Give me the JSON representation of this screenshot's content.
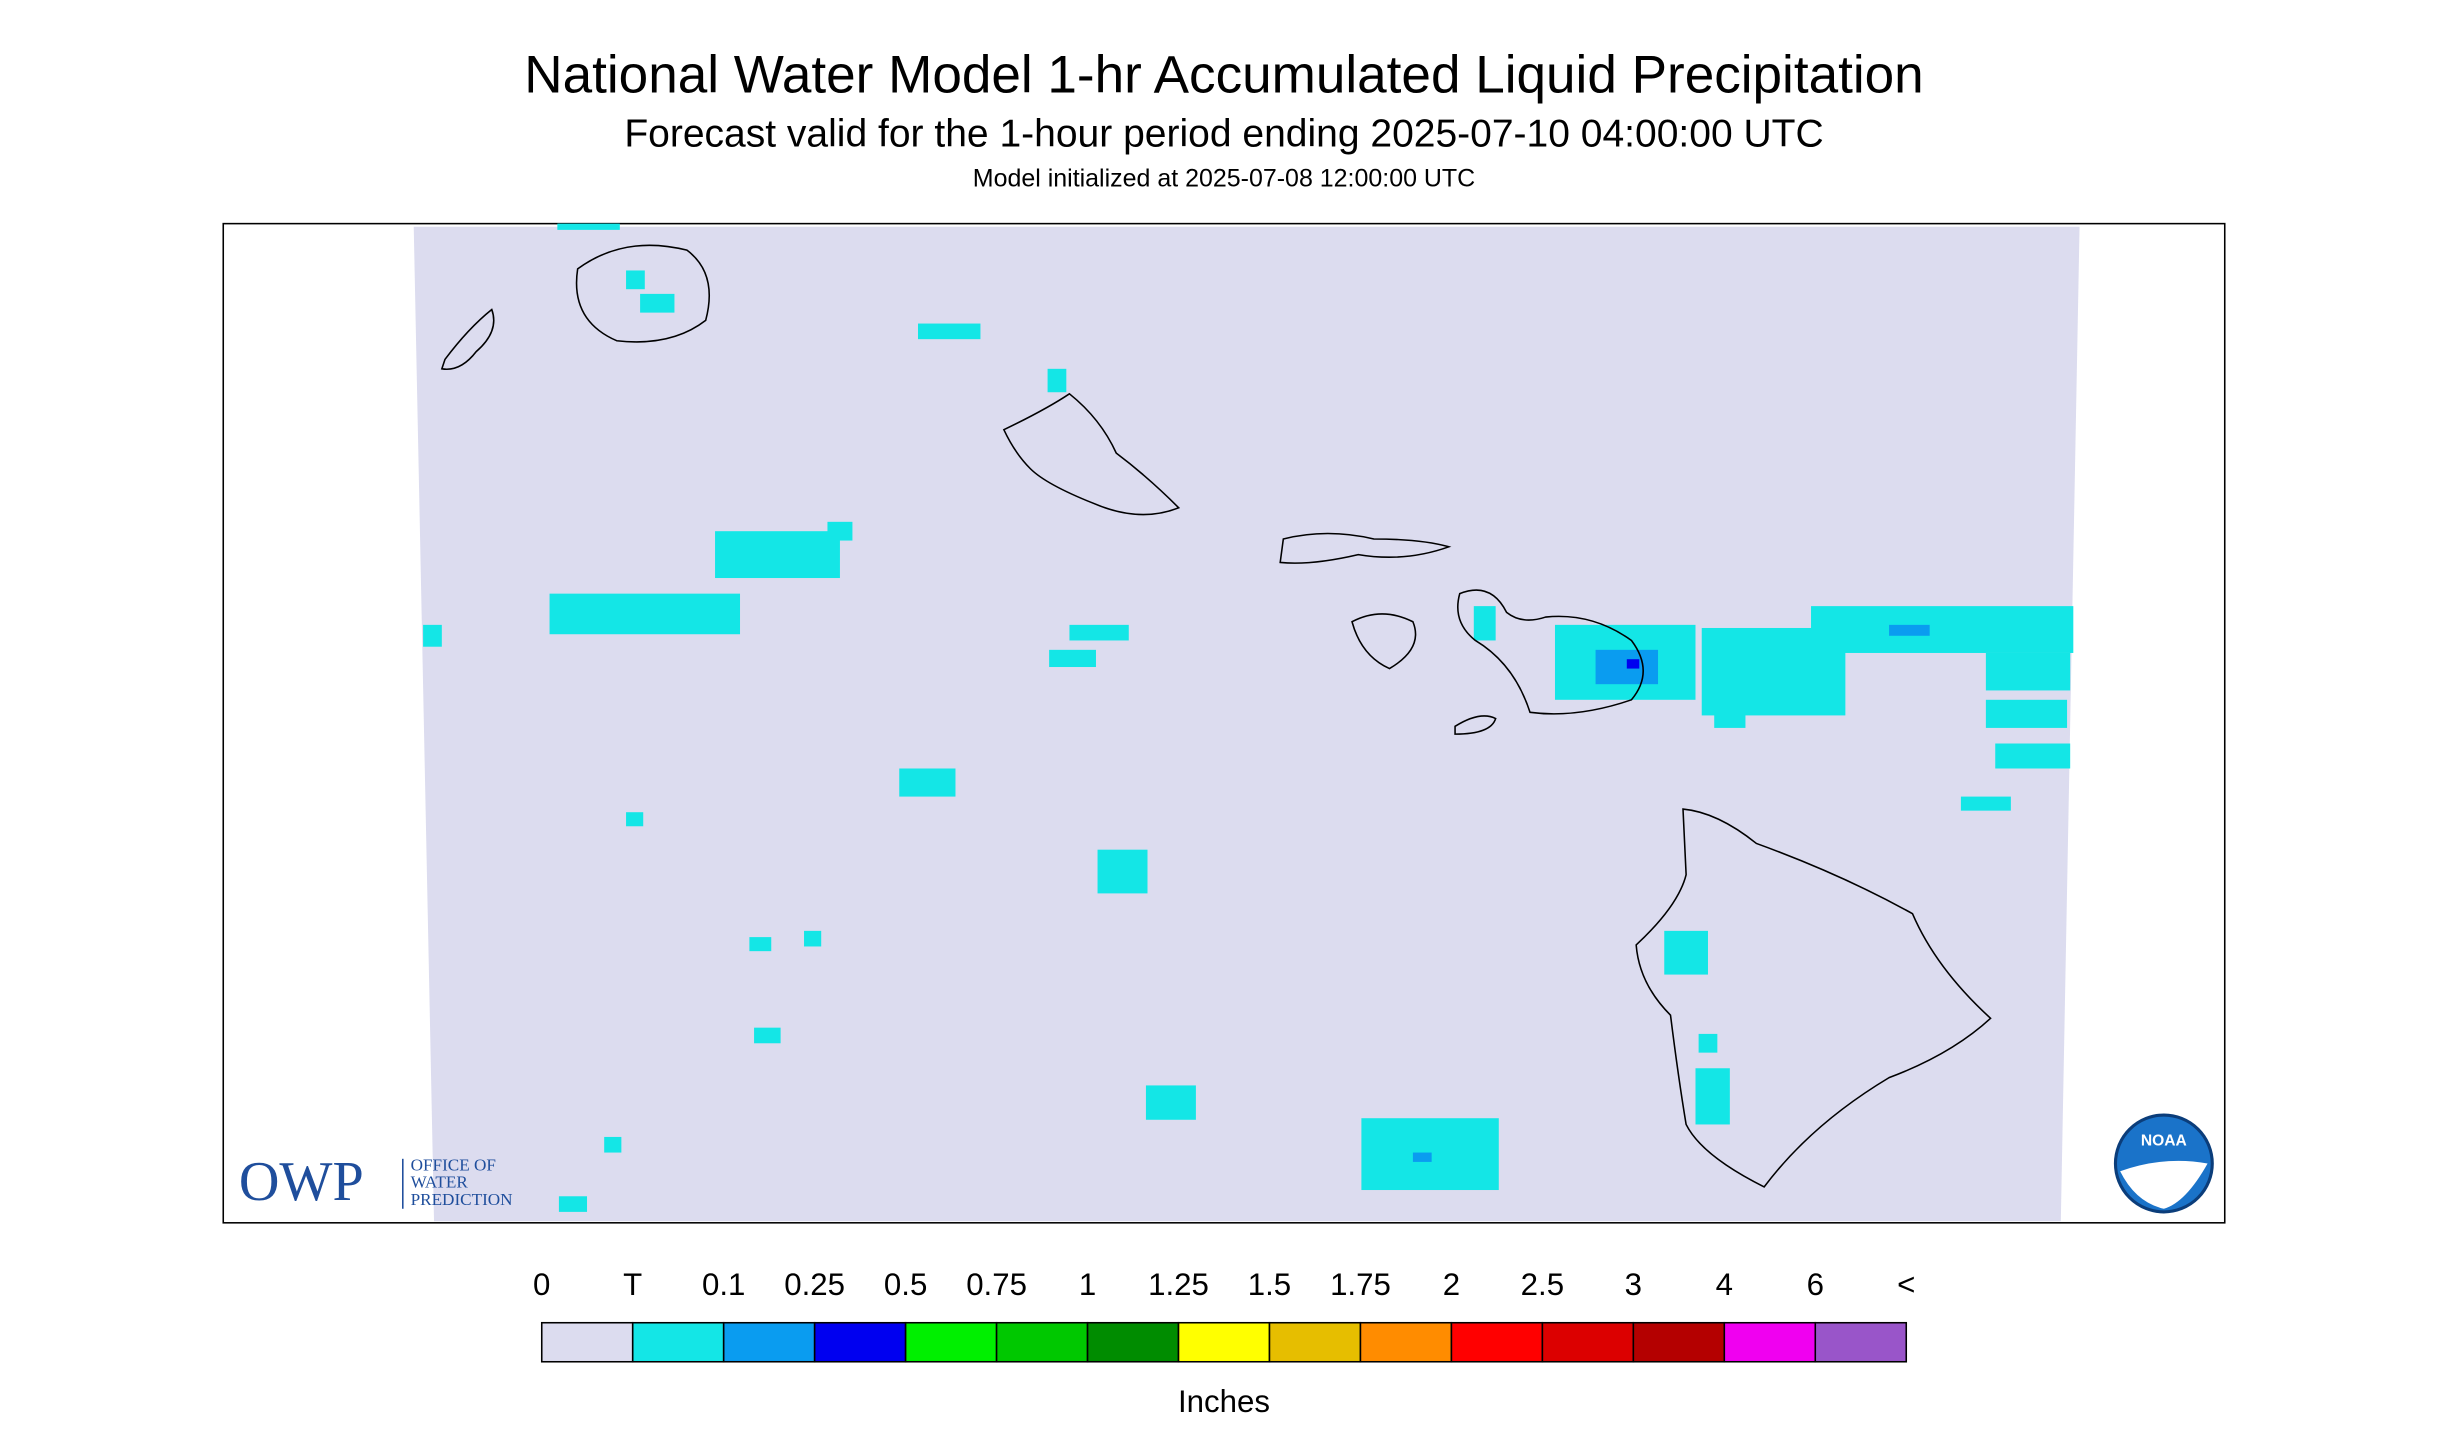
{
  "header": {
    "title": "National Water Model 1-hr Accumulated Liquid Precipitation",
    "subtitle": "Forecast valid for the 1-hour period ending 2025-07-10 04:00:00 UTC",
    "init": "Model initialized at 2025-07-08 12:00:00 UTC"
  },
  "logos": {
    "owp": "OWP",
    "owp_lines": [
      "OFFICE OF",
      "WATER",
      "PREDICTION"
    ],
    "noaa": "NOAA"
  },
  "legend": {
    "labels": [
      "0",
      "T",
      "0.1",
      "0.25",
      "0.5",
      "0.75",
      "1",
      "1.25",
      "1.5",
      "1.75",
      "2",
      "2.5",
      "3",
      "4",
      "6",
      "<"
    ],
    "colors": [
      "#dcdcef",
      "#14e6e6",
      "#0a9cf0",
      "#0000f0",
      "#00f000",
      "#00c800",
      "#008c00",
      "#ffff00",
      "#e6be00",
      "#ff8c00",
      "#ff0000",
      "#dc0000",
      "#b40000",
      "#f000f0",
      "#9955c9"
    ],
    "unit": "Inches"
  }
}
